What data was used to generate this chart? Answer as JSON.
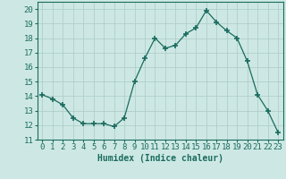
{
  "x": [
    0,
    1,
    2,
    3,
    4,
    5,
    6,
    7,
    8,
    9,
    10,
    11,
    12,
    13,
    14,
    15,
    16,
    17,
    18,
    19,
    20,
    21,
    22,
    23
  ],
  "y": [
    14.1,
    13.8,
    13.4,
    12.5,
    12.1,
    12.1,
    12.1,
    11.9,
    12.5,
    15.0,
    16.6,
    18.0,
    17.3,
    17.5,
    18.3,
    18.7,
    19.9,
    19.1,
    18.5,
    18.0,
    16.4,
    14.1,
    13.0,
    11.5
  ],
  "line_color": "#1a6b5e",
  "marker": "+",
  "marker_size": 4,
  "marker_lw": 1.2,
  "bg_color": "#cde8e4",
  "grid_color": "#b0ceca",
  "xlabel": "Humidex (Indice chaleur)",
  "xlim": [
    -0.5,
    23.5
  ],
  "ylim": [
    11,
    20.5
  ],
  "xticks": [
    0,
    1,
    2,
    3,
    4,
    5,
    6,
    7,
    8,
    9,
    10,
    11,
    12,
    13,
    14,
    15,
    16,
    17,
    18,
    19,
    20,
    21,
    22,
    23
  ],
  "yticks": [
    11,
    12,
    13,
    14,
    15,
    16,
    17,
    18,
    19,
    20
  ],
  "tick_color": "#1a6b5e",
  "label_fontsize": 7,
  "tick_fontsize": 6.5
}
